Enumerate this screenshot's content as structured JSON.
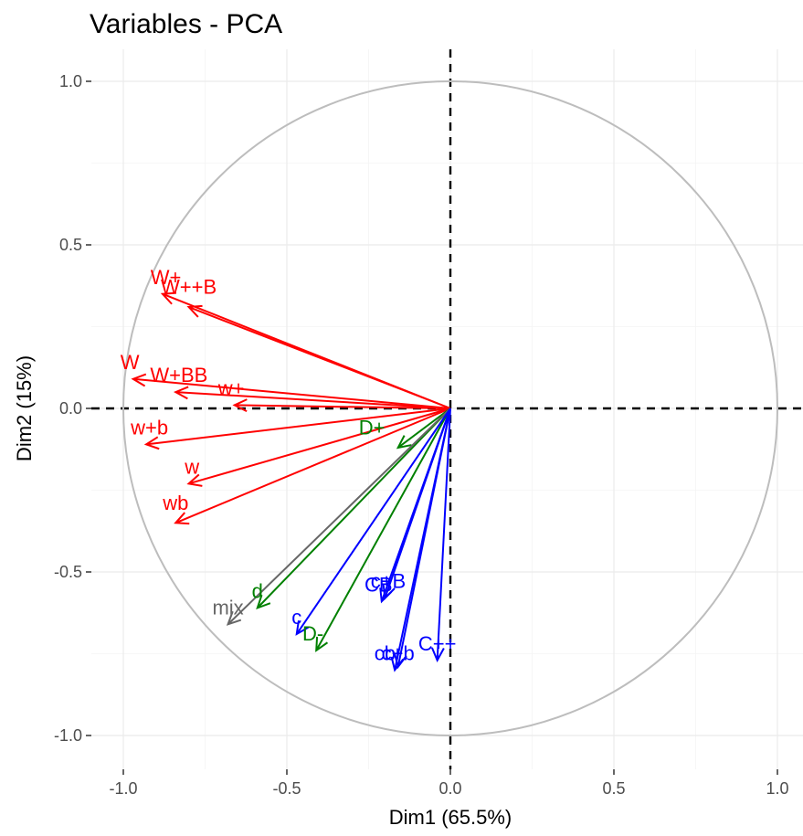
{
  "chart_data": {
    "type": "scatter",
    "title": "Variables - PCA",
    "xlabel": "Dim1 (65.5%)",
    "ylabel": "Dim2 (15%)",
    "xlim": [
      -1.0,
      1.0
    ],
    "ylim": [
      -1.0,
      1.0
    ],
    "x_ticks": [
      "-1.0",
      "-0.5",
      "0.0",
      "0.5",
      "1.0"
    ],
    "y_ticks": [
      "-1.0",
      "-0.5",
      "0.0",
      "0.5",
      "1.0"
    ],
    "grid": true,
    "correlation_circle": true,
    "reference_lines": [
      0,
      0
    ],
    "group_colors": {
      "red": "#ff0000",
      "green": "#008000",
      "blue": "#0000ff",
      "gray": "#666666"
    },
    "arrows": [
      {
        "label": "W+",
        "x": -0.88,
        "y": 0.35,
        "color": "red"
      },
      {
        "label": "W++B",
        "x": -0.8,
        "y": 0.31,
        "color": "red"
      },
      {
        "label": "W",
        "x": -0.97,
        "y": 0.09,
        "color": "red"
      },
      {
        "label": "W+BB",
        "x": -0.84,
        "y": 0.05,
        "color": "red"
      },
      {
        "label": "w+",
        "x": -0.66,
        "y": 0.01,
        "color": "red"
      },
      {
        "label": "w+b",
        "x": -0.93,
        "y": -0.11,
        "color": "red"
      },
      {
        "label": "w",
        "x": -0.8,
        "y": -0.23,
        "color": "red"
      },
      {
        "label": "wb",
        "x": -0.84,
        "y": -0.35,
        "color": "red"
      },
      {
        "label": "D+",
        "x": -0.16,
        "y": -0.12,
        "color": "green"
      },
      {
        "label": "d",
        "x": -0.59,
        "y": -0.61,
        "color": "green"
      },
      {
        "label": "D-",
        "x": -0.41,
        "y": -0.74,
        "color": "green"
      },
      {
        "label": "mix",
        "x": -0.68,
        "y": -0.66,
        "color": "gray"
      },
      {
        "label": "c",
        "x": -0.47,
        "y": -0.69,
        "color": "blue"
      },
      {
        "label": "CB",
        "x": -0.21,
        "y": -0.59,
        "color": "blue"
      },
      {
        "label": "c+B",
        "x": -0.2,
        "y": -0.58,
        "color": "blue"
      },
      {
        "label": "C++",
        "x": -0.04,
        "y": -0.77,
        "color": "blue"
      },
      {
        "label": "cb",
        "x": -0.17,
        "y": -0.8,
        "color": "blue"
      },
      {
        "label": "c+b",
        "x": -0.16,
        "y": -0.79,
        "color": "blue"
      }
    ],
    "labels": [
      {
        "text": "W+",
        "x": -0.87,
        "y": 0.4,
        "color": "red",
        "anchor": "middle"
      },
      {
        "text": "W++B",
        "x": -0.8,
        "y": 0.37,
        "color": "red",
        "anchor": "middle"
      },
      {
        "text": "W",
        "x": -0.98,
        "y": 0.14,
        "color": "red",
        "anchor": "middle"
      },
      {
        "text": "W+BB",
        "x": -0.83,
        "y": 0.1,
        "color": "red",
        "anchor": "middle"
      },
      {
        "text": "w+",
        "x": -0.67,
        "y": 0.06,
        "color": "red",
        "anchor": "middle"
      },
      {
        "text": "w+b",
        "x": -0.92,
        "y": -0.06,
        "color": "red",
        "anchor": "middle"
      },
      {
        "text": "w",
        "x": -0.79,
        "y": -0.18,
        "color": "red",
        "anchor": "middle"
      },
      {
        "text": "wb",
        "x": -0.84,
        "y": -0.29,
        "color": "red",
        "anchor": "middle"
      },
      {
        "text": "D+",
        "x": -0.24,
        "y": -0.06,
        "color": "green",
        "anchor": "middle"
      },
      {
        "text": "d",
        "x": -0.59,
        "y": -0.56,
        "color": "green",
        "anchor": "middle"
      },
      {
        "text": "D-",
        "x": -0.42,
        "y": -0.69,
        "color": "green",
        "anchor": "middle"
      },
      {
        "text": "mix",
        "x": -0.68,
        "y": -0.61,
        "color": "gray",
        "anchor": "middle"
      },
      {
        "text": "c",
        "x": -0.47,
        "y": -0.64,
        "color": "blue",
        "anchor": "middle"
      },
      {
        "text": "CB",
        "x": -0.22,
        "y": -0.54,
        "color": "blue",
        "anchor": "middle"
      },
      {
        "text": "c+B",
        "x": -0.19,
        "y": -0.53,
        "color": "blue",
        "anchor": "middle"
      },
      {
        "text": "C++",
        "x": -0.04,
        "y": -0.72,
        "color": "blue",
        "anchor": "middle"
      },
      {
        "text": "cb",
        "x": -0.2,
        "y": -0.75,
        "color": "blue",
        "anchor": "middle"
      },
      {
        "text": "c+b",
        "x": -0.16,
        "y": -0.75,
        "color": "blue",
        "anchor": "middle"
      }
    ]
  }
}
